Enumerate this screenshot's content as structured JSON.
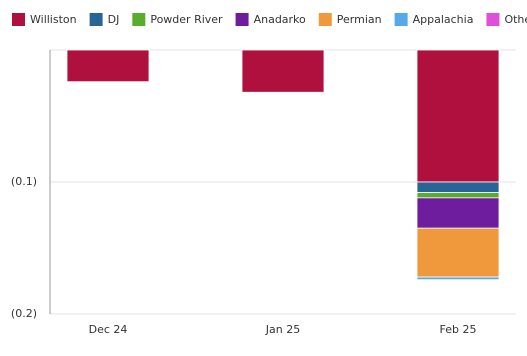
{
  "chart_data": {
    "type": "stacked-bar",
    "categories": [
      "Dec 24",
      "Jan 25",
      "Feb 25"
    ],
    "series": [
      {
        "name": "Williston",
        "color": "#b0103e",
        "values": [
          -0.024,
          -0.032,
          -0.1
        ]
      },
      {
        "name": "DJ",
        "color": "#2a6496",
        "values": [
          0,
          0,
          -0.008
        ]
      },
      {
        "name": "Powder River",
        "color": "#5aac2e",
        "values": [
          0,
          0,
          -0.004
        ]
      },
      {
        "name": "Anadarko",
        "color": "#6e1d9e",
        "values": [
          0,
          0,
          -0.023
        ]
      },
      {
        "name": "Permian",
        "color": "#f0993c",
        "values": [
          0,
          0,
          -0.037
        ]
      },
      {
        "name": "Appalachia",
        "color": "#56a9e8",
        "values": [
          0,
          0,
          -0.002
        ]
      },
      {
        "name": "Others",
        "color": "#e04fd8",
        "values": [
          0,
          0,
          0
        ]
      }
    ],
    "ylim": [
      -0.2,
      0
    ],
    "yticks": [
      {
        "value": -0.1,
        "label": "(0.1)"
      },
      {
        "value": -0.2,
        "label": "(0.2)"
      }
    ],
    "grid": true
  }
}
